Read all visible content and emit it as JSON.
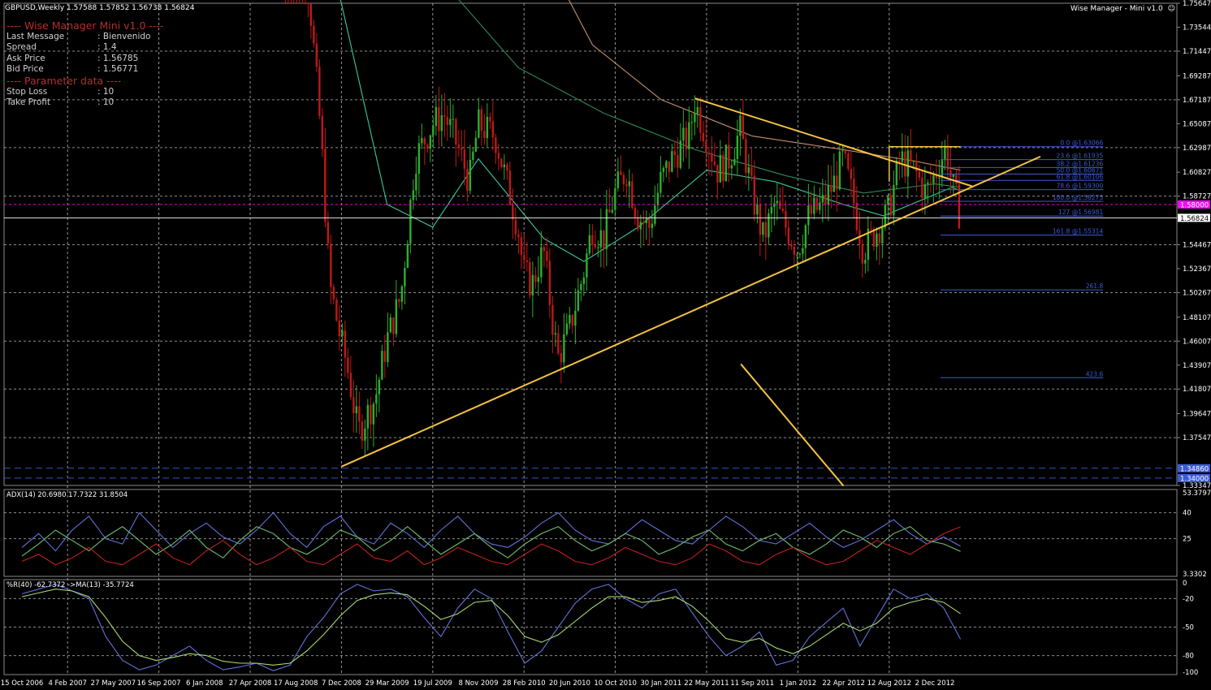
{
  "header": {
    "symbol_line": "GBPUSD,Weekly  1.57588 1.57852 1.56738 1.56824",
    "badge": "Wise Manager - Mini v1.0"
  },
  "info_panel": {
    "title": "---- Wise Manager Mini v1.0 ----",
    "rows": [
      {
        "label": "Last Message",
        "value": ": Bienvenido"
      },
      {
        "label": "Spread",
        "value": ": 1.4"
      },
      {
        "label": "Ask Price",
        "value": ": 1.56785"
      },
      {
        "label": "Bid Price",
        "value": ": 1.56771"
      }
    ],
    "param_title": "---- Parameter data ----",
    "param_rows": [
      {
        "label": "Stop Loss",
        "value": ": 10"
      },
      {
        "label": "Take Profit",
        "value": ": 10"
      }
    ]
  },
  "colors": {
    "background": "#000000",
    "grid": "#c8c8c8",
    "bull": "#2fae2f",
    "bear": "#c01818",
    "trendline": "#f5c242",
    "fib": "#3b5bd6",
    "ma_fast": "#3cc8a0",
    "ma_mid": "#2e8b57",
    "ma_slow": "#c49070",
    "level_magenta": "#ff00ff",
    "adx_main": "#6272d8",
    "di_plus": "#6ec06e",
    "di_minus": "#c02020",
    "wpr": "#6272d8",
    "wpr_ma": "#a8d870"
  },
  "chart_data": [
    {
      "type": "candlestick",
      "title": "GBPUSD,Weekly",
      "ohlc_last": {
        "open": 1.57588,
        "high": 1.57852,
        "low": 1.56738,
        "close": 1.56824
      },
      "x_ticks": [
        "15 Oct 2006",
        "4 Feb 2007",
        "27 May 2007",
        "16 Sep 2007",
        "6 Jan 2008",
        "27 Apr 2008",
        "17 Aug 2008",
        "7 Dec 2008",
        "29 Mar 2009",
        "19 Jul 2009",
        "8 Nov 2009",
        "28 Feb 2010",
        "20 Jun 2010",
        "10 Oct 2010",
        "30 Jan 2011",
        "22 May 2011",
        "11 Sep 2011",
        "1 Jan 2012",
        "22 Apr 2012",
        "12 Aug 2012",
        "2 Dec 2012"
      ],
      "y_ticks": [
        "1.75647",
        "1.73544",
        "1.71447",
        "1.69287",
        "1.67187",
        "1.65087",
        "1.62987",
        "1.60827",
        "1.58727",
        "1.56824",
        "1.54467",
        "1.52367",
        "1.50267",
        "1.48107",
        "1.46007",
        "1.43907",
        "1.41807",
        "1.39647",
        "1.37547",
        "1.34860",
        "1.34000",
        "1.33347"
      ],
      "ylim": [
        1.3335,
        1.7565
      ],
      "price_path": [
        {
          "date": "2008-07-20",
          "price": 1.995
        },
        {
          "date": "2008-08-17",
          "price": 1.9
        },
        {
          "date": "2008-09-21",
          "price": 1.76
        },
        {
          "date": "2008-10-19",
          "price": 1.64
        },
        {
          "date": "2008-11-09",
          "price": 1.51
        },
        {
          "date": "2008-12-07",
          "price": 1.46
        },
        {
          "date": "2008-12-21",
          "price": 1.44
        },
        {
          "date": "2009-01-18",
          "price": 1.38
        },
        {
          "date": "2009-03-01",
          "price": 1.41
        },
        {
          "date": "2009-03-29",
          "price": 1.46
        },
        {
          "date": "2009-05-03",
          "price": 1.5
        },
        {
          "date": "2009-06-07",
          "price": 1.62
        },
        {
          "date": "2009-07-19",
          "price": 1.65
        },
        {
          "date": "2009-08-16",
          "price": 1.66
        },
        {
          "date": "2009-09-20",
          "price": 1.63
        },
        {
          "date": "2009-10-18",
          "price": 1.6
        },
        {
          "date": "2009-11-08",
          "price": 1.65
        },
        {
          "date": "2009-12-20",
          "price": 1.64
        },
        {
          "date": "2010-01-17",
          "price": 1.6
        },
        {
          "date": "2010-02-14",
          "price": 1.56
        },
        {
          "date": "2010-02-28",
          "price": 1.52
        },
        {
          "date": "2010-03-21",
          "price": 1.51
        },
        {
          "date": "2010-04-18",
          "price": 1.54
        },
        {
          "date": "2010-05-09",
          "price": 1.48
        },
        {
          "date": "2010-05-23",
          "price": 1.445
        },
        {
          "date": "2010-06-20",
          "price": 1.47
        },
        {
          "date": "2010-07-25",
          "price": 1.52
        },
        {
          "date": "2010-08-15",
          "price": 1.56
        },
        {
          "date": "2010-09-12",
          "price": 1.55
        },
        {
          "date": "2010-10-10",
          "price": 1.59
        },
        {
          "date": "2010-11-07",
          "price": 1.61
        },
        {
          "date": "2010-12-05",
          "price": 1.57
        },
        {
          "date": "2011-01-02",
          "price": 1.56
        },
        {
          "date": "2011-01-30",
          "price": 1.6
        },
        {
          "date": "2011-02-27",
          "price": 1.62
        },
        {
          "date": "2011-04-10",
          "price": 1.64
        },
        {
          "date": "2011-04-24",
          "price": 1.67
        },
        {
          "date": "2011-05-22",
          "price": 1.64
        },
        {
          "date": "2011-06-19",
          "price": 1.61
        },
        {
          "date": "2011-07-17",
          "price": 1.62
        },
        {
          "date": "2011-08-14",
          "price": 1.645
        },
        {
          "date": "2011-09-11",
          "price": 1.59
        },
        {
          "date": "2011-10-09",
          "price": 1.55
        },
        {
          "date": "2011-11-06",
          "price": 1.58
        },
        {
          "date": "2011-12-04",
          "price": 1.56
        },
        {
          "date": "2012-01-01",
          "price": 1.54
        },
        {
          "date": "2012-01-29",
          "price": 1.57
        },
        {
          "date": "2012-03-04",
          "price": 1.58
        },
        {
          "date": "2012-04-01",
          "price": 1.6
        },
        {
          "date": "2012-04-22",
          "price": 1.62
        },
        {
          "date": "2012-05-20",
          "price": 1.58
        },
        {
          "date": "2012-06-10",
          "price": 1.54
        },
        {
          "date": "2012-07-08",
          "price": 1.555
        },
        {
          "date": "2012-07-29",
          "price": 1.565
        },
        {
          "date": "2012-08-12",
          "price": 1.575
        },
        {
          "date": "2012-09-09",
          "price": 1.62
        },
        {
          "date": "2012-10-14",
          "price": 1.61
        },
        {
          "date": "2012-11-11",
          "price": 1.59
        },
        {
          "date": "2012-12-02",
          "price": 1.605
        },
        {
          "date": "2012-12-30",
          "price": 1.63
        },
        {
          "date": "2013-01-13",
          "price": 1.6
        },
        {
          "date": "2013-02-03",
          "price": 1.57
        }
      ],
      "moving_averages": [
        {
          "points": [
            {
              "date": "2008-11-09",
              "price": 1.8
            },
            {
              "date": "2009-03-29",
              "price": 1.58
            },
            {
              "date": "2009-07-19",
              "price": 1.56
            },
            {
              "date": "2009-11-08",
              "price": 1.62
            },
            {
              "date": "2010-04-18",
              "price": 1.55
            },
            {
              "date": "2010-07-25",
              "price": 1.53
            },
            {
              "date": "2010-12-05",
              "price": 1.56
            },
            {
              "date": "2011-05-22",
              "price": 1.61
            },
            {
              "date": "2011-11-06",
              "price": 1.6
            },
            {
              "date": "2012-04-22",
              "price": 1.58
            },
            {
              "date": "2012-07-29",
              "price": 1.57
            },
            {
              "date": "2013-01-13",
              "price": 1.595
            },
            {
              "date": "2013-02-03",
              "price": 1.592
            }
          ]
        },
        {
          "points": [
            {
              "date": "2009-09-20",
              "price": 1.76
            },
            {
              "date": "2010-02-14",
              "price": 1.7
            },
            {
              "date": "2010-09-12",
              "price": 1.66
            },
            {
              "date": "2011-04-24",
              "price": 1.628
            },
            {
              "date": "2011-12-04",
              "price": 1.605
            },
            {
              "date": "2012-06-10",
              "price": 1.59
            },
            {
              "date": "2012-12-02",
              "price": 1.598
            },
            {
              "date": "2013-02-03",
              "price": 1.595
            }
          ]
        },
        {
          "points": [
            {
              "date": "2010-03-21",
              "price": 1.82
            },
            {
              "date": "2010-08-15",
              "price": 1.72
            },
            {
              "date": "2011-01-30",
              "price": 1.672
            },
            {
              "date": "2011-09-11",
              "price": 1.64
            },
            {
              "date": "2012-04-22",
              "price": 1.628
            },
            {
              "date": "2012-10-14",
              "price": 1.618
            },
            {
              "date": "2013-02-03",
              "price": 1.61
            }
          ]
        }
      ],
      "trendlines": [
        {
          "from": {
            "date": "2008-12-07",
            "price": 1.35
          },
          "to": {
            "date": "2013-08-18",
            "price": 1.622
          }
        },
        {
          "from": {
            "date": "2011-04-24",
            "price": 1.673
          },
          "to": {
            "date": "2013-03-03",
            "price": 1.596
          }
        },
        {
          "from": {
            "date": "2011-08-14",
            "price": 1.44
          },
          "to": {
            "date": "2012-04-22",
            "price": 1.333
          }
        }
      ],
      "horizontal_levels": [
        {
          "price": 1.58,
          "label": "1.58000"
        },
        {
          "price": 1.56824,
          "label": "1.56824"
        },
        {
          "price": 1.3486,
          "label": "1.34860"
        },
        {
          "price": 1.34,
          "label": "1.34000"
        }
      ],
      "fibonacci": [
        {
          "label": "0.0 @1.63066",
          "price": 1.63066
        },
        {
          "label": "23.6 @1.61935",
          "price": 1.61935
        },
        {
          "label": "38.2 @1.61236",
          "price": 1.61236
        },
        {
          "label": "50.0 @1.60671",
          "price": 1.60671
        },
        {
          "label": "61.8 @1.60106",
          "price": 1.60106
        },
        {
          "label": "78.6 @1.59300",
          "price": 1.593
        },
        {
          "label": "100.0 @1.58275",
          "price": 1.58275
        },
        {
          "label": "127 @1.56981",
          "price": 1.56981
        },
        {
          "label": "161.8 @1.55314",
          "price": 1.55314
        },
        {
          "label": "261.8",
          "price": 1.505
        },
        {
          "label": "423.6",
          "price": 1.428
        }
      ]
    },
    {
      "type": "line",
      "title": "ADX(14) 20.6980 17.7322 31.8504",
      "y_ticks": [
        "53.3797",
        "40",
        "25",
        "3.3302"
      ],
      "ylim": [
        3.3302,
        53.3797
      ],
      "series": [
        {
          "values": [
            20,
            28,
            18,
            30,
            38,
            25,
            22,
            40,
            30,
            20,
            28,
            34,
            26,
            22,
            30,
            40,
            28,
            20,
            32,
            38,
            26,
            22,
            34,
            28,
            20,
            30,
            38,
            28,
            22,
            20,
            26,
            34,
            40,
            30,
            24,
            22,
            28,
            36,
            30,
            24,
            22,
            30,
            38,
            32,
            24,
            22,
            28,
            34,
            26,
            20,
            24,
            30,
            36,
            28,
            22,
            26,
            20.698
          ]
        },
        {
          "values": [
            15,
            22,
            30,
            24,
            18,
            26,
            32,
            24,
            16,
            22,
            30,
            20,
            14,
            24,
            32,
            28,
            20,
            16,
            22,
            30,
            26,
            18,
            24,
            32,
            24,
            16,
            22,
            28,
            20,
            14,
            22,
            28,
            32,
            24,
            18,
            22,
            28,
            24,
            16,
            20,
            26,
            30,
            22,
            18,
            24,
            28,
            20,
            16,
            22,
            30,
            26,
            20,
            28,
            32,
            24,
            22,
            17.7322
          ]
        },
        {
          "values": [
            12,
            16,
            10,
            14,
            20,
            12,
            10,
            16,
            22,
            14,
            10,
            18,
            24,
            16,
            10,
            14,
            20,
            12,
            10,
            16,
            22,
            14,
            12,
            18,
            10,
            14,
            20,
            16,
            12,
            10,
            16,
            22,
            18,
            12,
            10,
            14,
            20,
            16,
            12,
            10,
            14,
            22,
            18,
            12,
            10,
            16,
            20,
            14,
            10,
            12,
            18,
            24,
            20,
            16,
            22,
            28,
            31.8504
          ]
        }
      ]
    },
    {
      "type": "line",
      "title": "%R(40) -62.7372 ->MA(13) -35.7724",
      "y_ticks": [
        "0",
        "-20",
        "-50",
        "-80",
        "-100"
      ],
      "ylim": [
        -100,
        0
      ],
      "series": [
        {
          "values": [
            -15,
            -10,
            -5,
            -12,
            -20,
            -60,
            -85,
            -95,
            -90,
            -80,
            -70,
            -85,
            -95,
            -92,
            -88,
            -96,
            -90,
            -60,
            -40,
            -15,
            -5,
            -12,
            -10,
            -18,
            -40,
            -60,
            -30,
            -10,
            -20,
            -55,
            -88,
            -75,
            -50,
            -25,
            -10,
            -5,
            -20,
            -30,
            -15,
            -10,
            -35,
            -60,
            -80,
            -70,
            -55,
            -90,
            -85,
            -60,
            -45,
            -30,
            -70,
            -40,
            -10,
            -20,
            -15,
            -30,
            -62.7372
          ]
        },
        {
          "values": [
            -18,
            -14,
            -10,
            -12,
            -18,
            -40,
            -65,
            -80,
            -85,
            -82,
            -78,
            -80,
            -86,
            -88,
            -88,
            -90,
            -88,
            -75,
            -58,
            -38,
            -22,
            -16,
            -14,
            -16,
            -28,
            -42,
            -36,
            -24,
            -22,
            -38,
            -60,
            -66,
            -58,
            -44,
            -30,
            -18,
            -18,
            -24,
            -22,
            -18,
            -28,
            -44,
            -62,
            -66,
            -62,
            -72,
            -78,
            -70,
            -58,
            -46,
            -54,
            -46,
            -30,
            -24,
            -20,
            -24,
            -35.7724
          ]
        }
      ]
    }
  ]
}
